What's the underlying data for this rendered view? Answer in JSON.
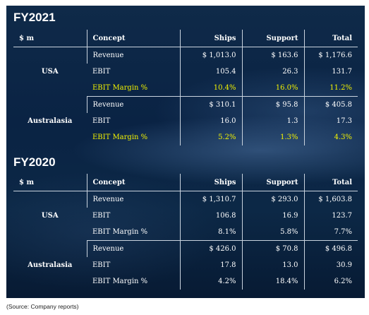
{
  "sections": [
    {
      "title": "FY2021",
      "headers": [
        "$ m",
        "Concept",
        "Ships",
        "Support",
        "Total"
      ],
      "groups": [
        {
          "region": "USA",
          "rows": [
            {
              "concept": "Revenue",
              "ships": "$ 1,013.0",
              "support": "$ 163.6",
              "total": "$ 1,176.6",
              "highlight": false
            },
            {
              "concept": "EBIT",
              "ships": "105.4",
              "support": "26.3",
              "total": "131.7",
              "highlight": false
            },
            {
              "concept": "EBIT Margin %",
              "ships": "10.4%",
              "support": "16.0%",
              "total": "11.2%",
              "highlight": true
            }
          ]
        },
        {
          "region": "Australasia",
          "rows": [
            {
              "concept": "Revenue",
              "ships": "$ 310.1",
              "support": "$ 95.8",
              "total": "$ 405.8",
              "highlight": false
            },
            {
              "concept": "EBIT",
              "ships": "16.0",
              "support": "1.3",
              "total": "17.3",
              "highlight": false
            },
            {
              "concept": "EBIT Margin %",
              "ships": "5.2%",
              "support": "1.3%",
              "total": "4.3%",
              "highlight": true
            }
          ]
        }
      ]
    },
    {
      "title": "FY2020",
      "headers": [
        "$ m",
        "Concept",
        "Ships",
        "Support",
        "Total"
      ],
      "groups": [
        {
          "region": "USA",
          "rows": [
            {
              "concept": "Revenue",
              "ships": "$ 1,310.7",
              "support": "$ 293.0",
              "total": "$ 1,603.8",
              "highlight": false
            },
            {
              "concept": "EBIT",
              "ships": "106.8",
              "support": "16.9",
              "total": "123.7",
              "highlight": false
            },
            {
              "concept": "EBIT Margin %",
              "ships": "8.1%",
              "support": "5.8%",
              "total": "7.7%",
              "highlight": false
            }
          ]
        },
        {
          "region": "Australasia",
          "rows": [
            {
              "concept": "Revenue",
              "ships": "$ 426.0",
              "support": "$ 70.8",
              "total": "$ 496.8",
              "highlight": false
            },
            {
              "concept": "EBIT",
              "ships": "17.8",
              "support": "13.0",
              "total": "30.9",
              "highlight": false
            },
            {
              "concept": "EBIT Margin %",
              "ships": "4.2%",
              "support": "18.4%",
              "total": "6.2%",
              "highlight": false
            }
          ]
        }
      ]
    }
  ],
  "source_note": "(Source: Company reports)",
  "colors": {
    "background": "#0c2846",
    "text": "#ffffff",
    "highlight": "#f2f200",
    "gridline": "#c9d3de"
  }
}
